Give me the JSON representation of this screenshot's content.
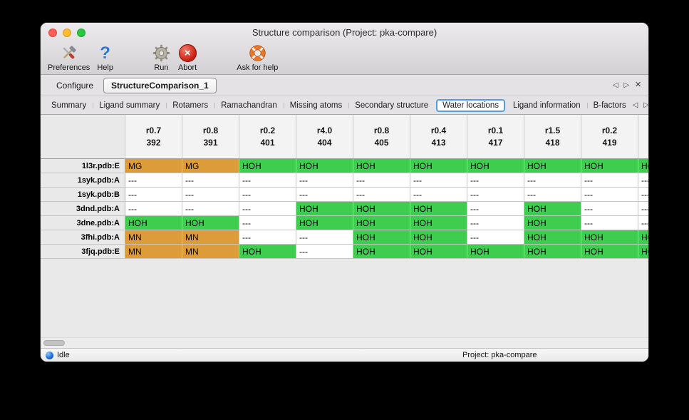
{
  "window": {
    "title": "Structure comparison (Project: pka-compare)"
  },
  "toolbar": {
    "items": [
      {
        "name": "preferences-button",
        "label": "Preferences",
        "icon": "preferences-tools-icon"
      },
      {
        "name": "help-button",
        "label": "Help",
        "icon": "help-question-icon"
      },
      {
        "name": "run-button",
        "label": "Run",
        "icon": "run-gear-icon"
      },
      {
        "name": "abort-button",
        "label": "Abort",
        "icon": "abort-x-icon"
      },
      {
        "name": "ask-for-help-button",
        "label": "Ask for help",
        "icon": "lifebuoy-icon"
      }
    ]
  },
  "main_tabs": {
    "active_index": 1,
    "items": [
      {
        "label": "Configure"
      },
      {
        "label": "StructureComparison_1"
      }
    ],
    "controls": {
      "prev": "◁",
      "next": "▷",
      "close": "×"
    }
  },
  "sub_tabs": {
    "active_index": 6,
    "items": [
      {
        "label": "Summary"
      },
      {
        "label": "Ligand summary"
      },
      {
        "label": "Rotamers"
      },
      {
        "label": "Ramachandran"
      },
      {
        "label": "Missing atoms"
      },
      {
        "label": "Secondary structure"
      },
      {
        "label": "Water locations"
      },
      {
        "label": "Ligand information"
      },
      {
        "label": "B-factors"
      }
    ],
    "controls": {
      "prev": "◁",
      "next": "▷"
    }
  },
  "table": {
    "columns": [
      [
        "r0.7",
        "392"
      ],
      [
        "r0.8",
        "391"
      ],
      [
        "r0.2",
        "401"
      ],
      [
        "r4.0",
        "404"
      ],
      [
        "r0.8",
        "405"
      ],
      [
        "r0.4",
        "413"
      ],
      [
        "r0.1",
        "417"
      ],
      [
        "r1.5",
        "418"
      ],
      [
        "r0.2",
        "419"
      ],
      [
        "",
        ""
      ]
    ],
    "rows": [
      {
        "name": "1l3r.pdb:E",
        "cells": [
          "MG",
          "MG",
          "HOH",
          "HOH",
          "HOH",
          "HOH",
          "HOH",
          "HOH",
          "HOH",
          "HOH"
        ]
      },
      {
        "name": "1syk.pdb:A",
        "cells": [
          "---",
          "---",
          "---",
          "---",
          "---",
          "---",
          "---",
          "---",
          "---",
          "---"
        ]
      },
      {
        "name": "1syk.pdb:B",
        "cells": [
          "---",
          "---",
          "---",
          "---",
          "---",
          "---",
          "---",
          "---",
          "---",
          "---"
        ]
      },
      {
        "name": "3dnd.pdb:A",
        "cells": [
          "---",
          "---",
          "---",
          "HOH",
          "HOH",
          "HOH",
          "---",
          "HOH",
          "---",
          "---"
        ]
      },
      {
        "name": "3dne.pdb:A",
        "cells": [
          "HOH",
          "HOH",
          "---",
          "HOH",
          "HOH",
          "HOH",
          "---",
          "HOH",
          "---",
          "---"
        ]
      },
      {
        "name": "3fhi.pdb:A",
        "cells": [
          "MN",
          "MN",
          "---",
          "---",
          "HOH",
          "HOH",
          "---",
          "HOH",
          "HOH",
          "HOH"
        ]
      },
      {
        "name": "3fjq.pdb:E",
        "cells": [
          "MN",
          "MN",
          "HOH",
          "---",
          "HOH",
          "HOH",
          "HOH",
          "HOH",
          "HOH",
          "HOH"
        ]
      }
    ],
    "cell_styles": {
      "HOH": "water_cell",
      "MG": "metal_cell",
      "MN": "metal_cell"
    }
  },
  "status_bar": {
    "status": "Idle",
    "project": "Project: pka-compare"
  },
  "colors": {
    "water_cell": "#3ecd4f",
    "metal_cell": "#dd9c3a",
    "active_subtab_border": "#4f9ee3",
    "abort_red": "#cc1f10",
    "help_blue": "#2f74d9",
    "lifebuoy_orange": "#e8772e"
  }
}
